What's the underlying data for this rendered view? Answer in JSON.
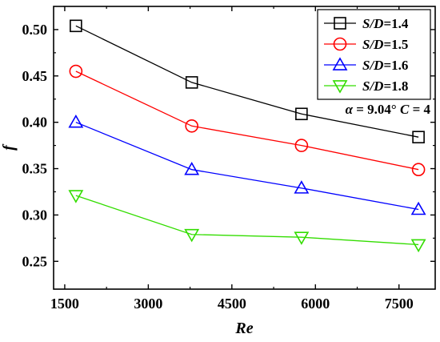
{
  "chart_data": {
    "type": "line",
    "xlabel": "Re",
    "ylabel": "f",
    "xlim": [
      1300,
      8150
    ],
    "ylim": [
      0.22,
      0.525
    ],
    "xticks": [
      1500,
      3000,
      4500,
      6000,
      7500
    ],
    "xtick_labels": [
      "1500",
      "3000",
      "4500",
      "6000",
      "7500"
    ],
    "yticks": [
      0.25,
      0.3,
      0.35,
      0.4,
      0.45,
      0.5
    ],
    "ytick_labels": [
      "0.25",
      "0.30",
      "0.35",
      "0.40",
      "0.45",
      "0.50"
    ],
    "grid": false,
    "legend_position": "top-right",
    "annotation": {
      "text": "α = 9.04° C = 4",
      "alpha_part": "α = 9.04°",
      "c_part": "C = 4"
    },
    "series": [
      {
        "name": "S/D=1.4",
        "legend_italic": "S/D",
        "legend_value": "=1.4",
        "color": "#000000",
        "marker": "square",
        "x": [
          1700,
          3780,
          5750,
          7850
        ],
        "y": [
          0.504,
          0.443,
          0.409,
          0.384
        ]
      },
      {
        "name": "S/D=1.5",
        "legend_italic": "S/D",
        "legend_value": "=1.5",
        "color": "#ff0000",
        "marker": "circle",
        "x": [
          1700,
          3780,
          5750,
          7850
        ],
        "y": [
          0.455,
          0.396,
          0.375,
          0.349
        ]
      },
      {
        "name": "S/D=1.6",
        "legend_italic": "S/D",
        "legend_value": "=1.6",
        "color": "#0000ff",
        "marker": "triangle-up",
        "x": [
          1700,
          3780,
          5750,
          7850
        ],
        "y": [
          0.4,
          0.349,
          0.329,
          0.306
        ]
      },
      {
        "name": "S/D=1.8",
        "legend_italic": "S/D",
        "legend_value": "=1.8",
        "color": "#33dd00",
        "marker": "triangle-down",
        "x": [
          1700,
          3780,
          5750,
          7850
        ],
        "y": [
          0.321,
          0.279,
          0.276,
          0.268
        ]
      }
    ]
  }
}
